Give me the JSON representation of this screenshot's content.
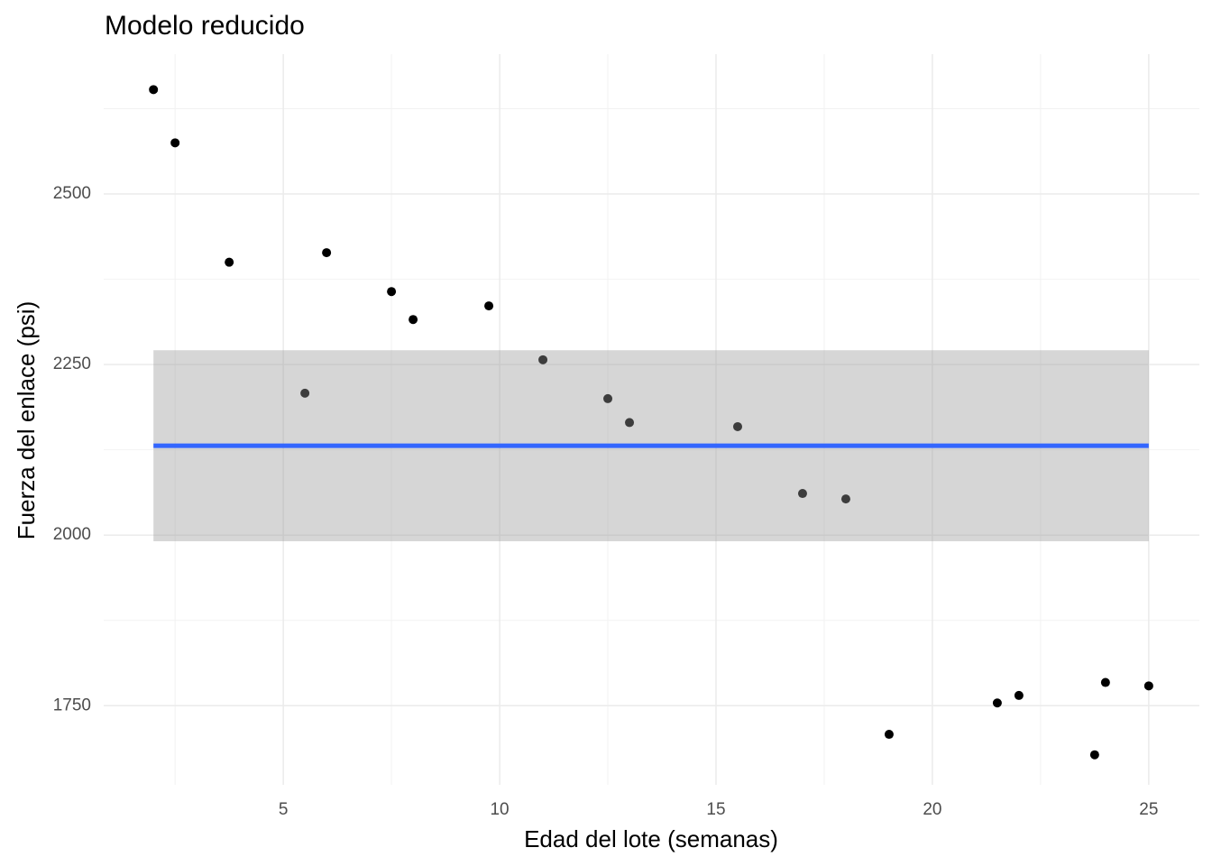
{
  "chart_data": {
    "type": "scatter",
    "title": "Modelo reducido",
    "x_label": "Edad del lote (semanas)",
    "y_label": "Fuerza del enlace (psi)",
    "x": [
      2,
      2.5,
      3.75,
      5.5,
      6,
      7.5,
      8,
      9.75,
      11,
      12.5,
      13,
      15.5,
      17,
      18,
      19,
      21.5,
      22,
      23.75,
      24,
      25
    ],
    "values": [
      2653,
      2575,
      2400,
      2208,
      2414,
      2357,
      2316,
      2336,
      2257,
      2200,
      2165,
      2159,
      2061,
      2053,
      1708,
      1754,
      1765,
      1678,
      1784,
      1779
    ],
    "color": "#000000",
    "fit": {
      "value": 2131,
      "lower": 1991,
      "upper": 2271,
      "color": "#3366FF",
      "band_color": "#999999"
    },
    "xlim": [
      0.85,
      26.17
    ],
    "xticks": [
      5,
      10,
      15,
      20,
      25
    ],
    "ylim": [
      1634,
      2705
    ],
    "yticks": [
      1750,
      2000,
      2250,
      2500
    ],
    "grid": true
  }
}
